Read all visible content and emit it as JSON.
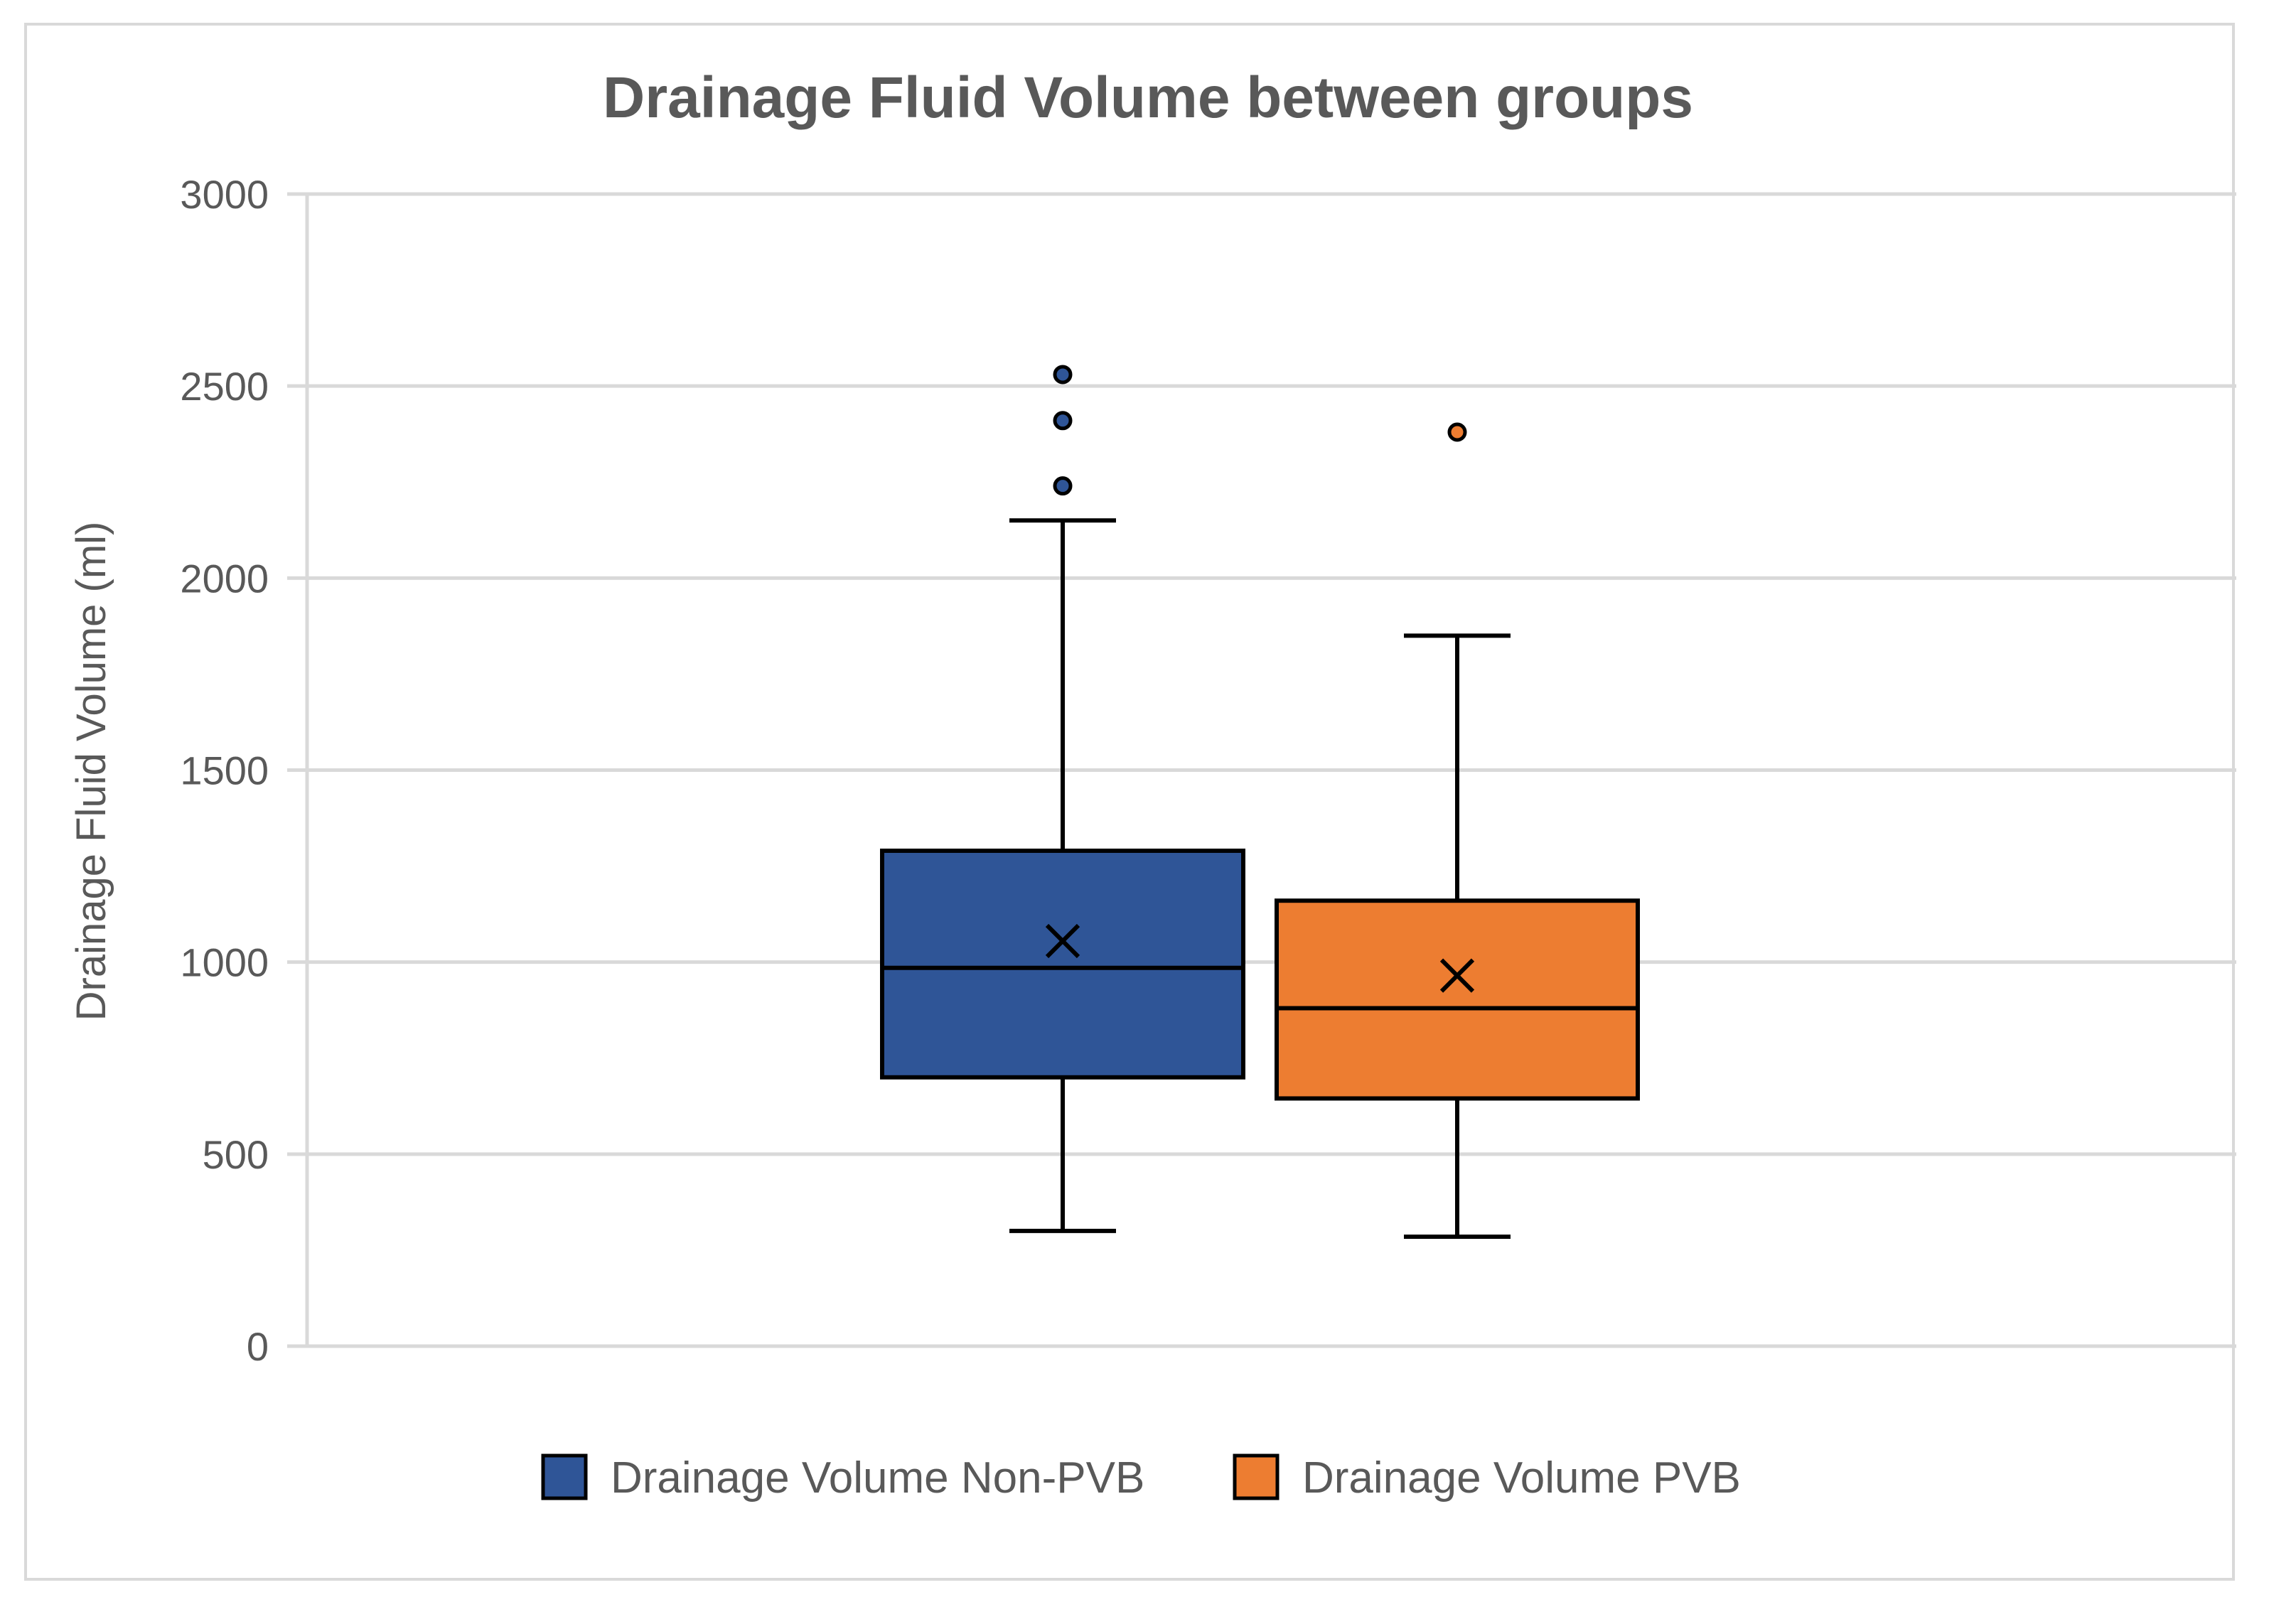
{
  "chart_data": {
    "type": "boxplot",
    "title": "Drainage Fluid Volume between groups",
    "xlabel": "",
    "ylabel": "Drainage Fluid Volume (ml)",
    "ylim": [
      0,
      3000
    ],
    "yticks": [
      0,
      500,
      1000,
      1500,
      2000,
      2500,
      3000
    ],
    "grid": true,
    "legend_position": "bottom",
    "series": [
      {
        "name": "Drainage Volume Non-PVB",
        "color": "#2f5597",
        "min": 300,
        "q1": 700,
        "median": 985,
        "q3": 1290,
        "max": 2150,
        "mean": 1055,
        "outliers": [
          2240,
          2410,
          2530
        ]
      },
      {
        "name": "Drainage Volume PVB",
        "color": "#ed7d31",
        "min": 285,
        "q1": 645,
        "median": 880,
        "q3": 1160,
        "max": 1850,
        "mean": 965,
        "outliers": [
          2380
        ]
      }
    ]
  }
}
